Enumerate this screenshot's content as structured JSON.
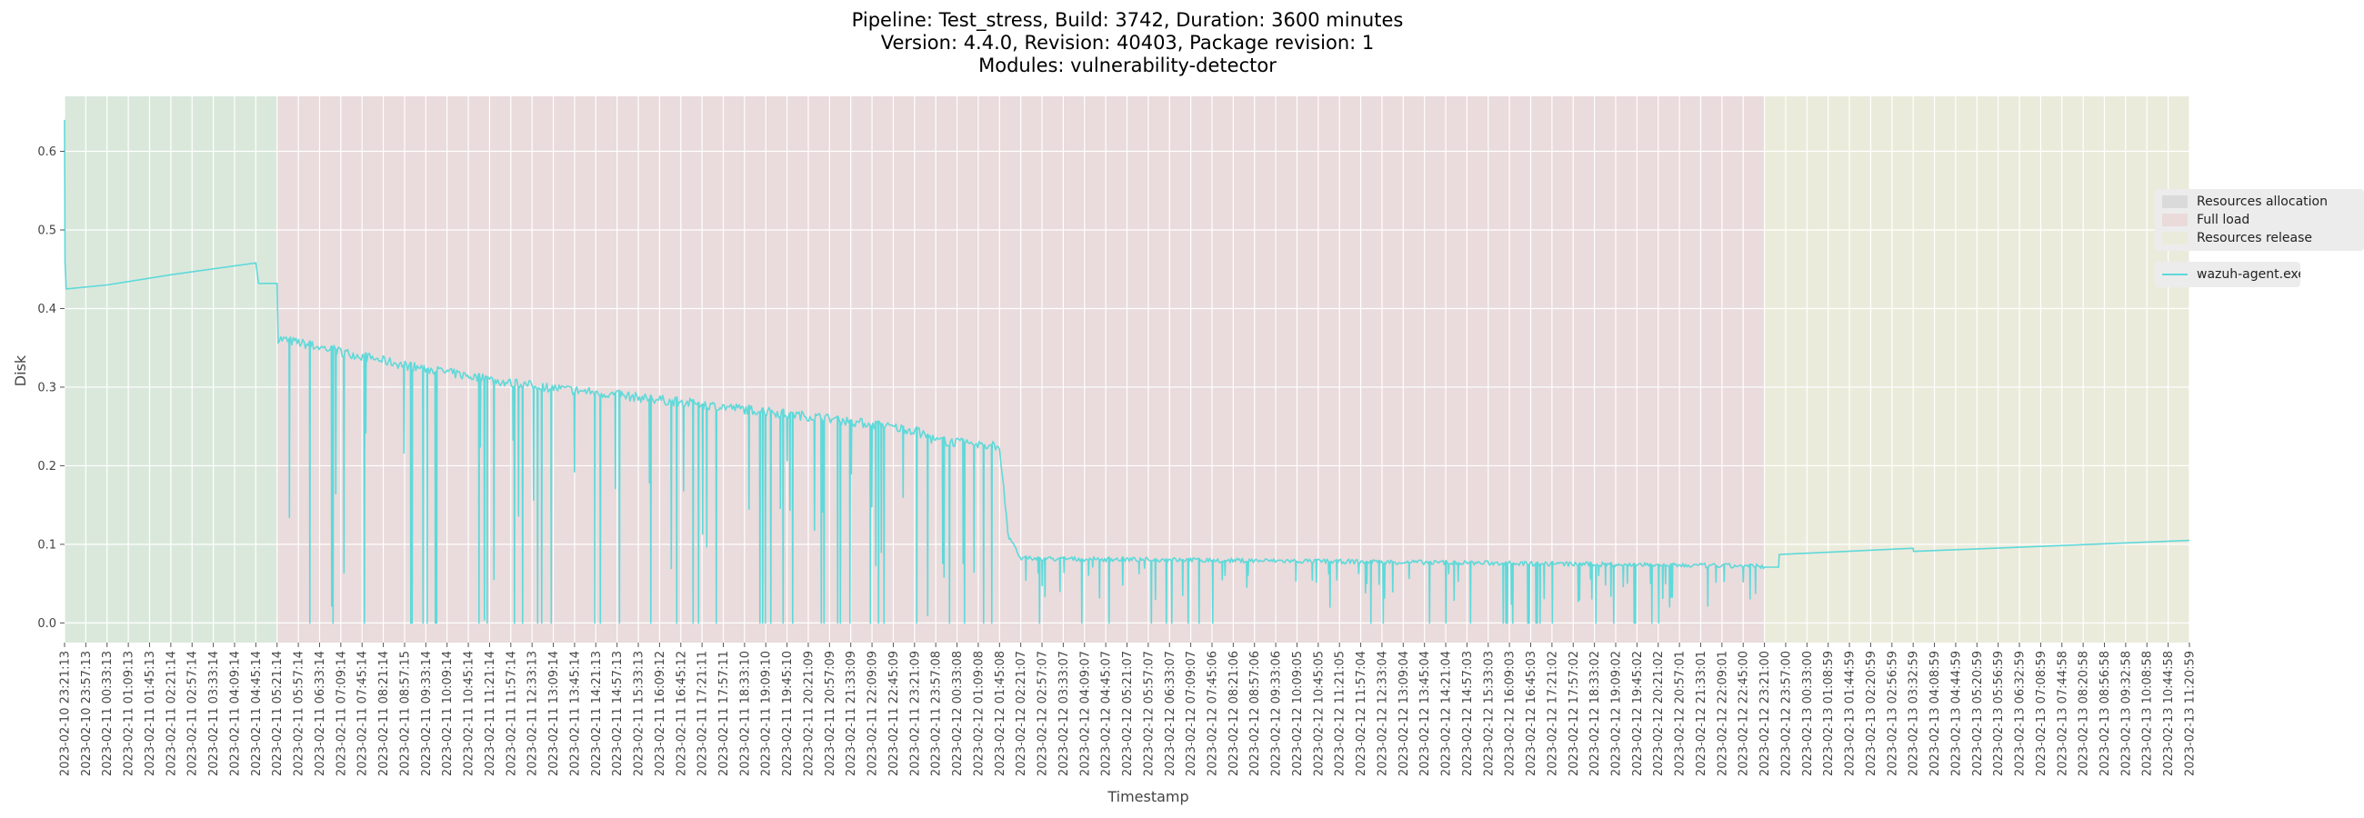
{
  "chart_data": {
    "type": "line",
    "title_lines": [
      "Pipeline: Test_stress, Build: 3742, Duration: 3600 minutes",
      "Version: 4.4.0, Revision: 40403, Package revision: 1",
      "Modules: vulnerability-detector"
    ],
    "xlabel": "Timestamp",
    "ylabel": "Disk",
    "ylim": [
      -0.025,
      0.67
    ],
    "yticks": [
      0.0,
      0.1,
      0.2,
      0.3,
      0.4,
      0.5,
      0.6
    ],
    "grid": true,
    "legend_position": "right",
    "phases": [
      {
        "name": "Resources allocation",
        "start": "2023-02-10 23:21:13",
        "end": "2023-02-11 05:21:14",
        "color": "#dae8dc"
      },
      {
        "name": "Full load",
        "start": "2023-02-11 05:21:14",
        "end": "2023-02-12 23:21:00",
        "color": "#eadbdc"
      },
      {
        "name": "Resources release",
        "start": "2023-02-12 23:21:00",
        "end": "2023-02-13 11:20:59",
        "color": "#ebebdc"
      }
    ],
    "xticks": [
      "2023-02-10 23:21:13",
      "2023-02-10 23:57:13",
      "2023-02-11 00:33:13",
      "2023-02-11 01:09:13",
      "2023-02-11 01:45:13",
      "2023-02-11 02:21:14",
      "2023-02-11 02:57:14",
      "2023-02-11 03:33:14",
      "2023-02-11 04:09:14",
      "2023-02-11 04:45:14",
      "2023-02-11 05:21:14",
      "2023-02-11 05:57:14",
      "2023-02-11 06:33:14",
      "2023-02-11 07:09:14",
      "2023-02-11 07:45:14",
      "2023-02-11 08:21:14",
      "2023-02-11 08:57:15",
      "2023-02-11 09:33:14",
      "2023-02-11 10:09:14",
      "2023-02-11 10:45:14",
      "2023-02-11 11:21:14",
      "2023-02-11 11:57:14",
      "2023-02-11 12:33:13",
      "2023-02-11 13:09:14",
      "2023-02-11 13:45:14",
      "2023-02-11 14:21:13",
      "2023-02-11 14:57:13",
      "2023-02-11 15:33:13",
      "2023-02-11 16:09:12",
      "2023-02-11 16:45:12",
      "2023-02-11 17:21:11",
      "2023-02-11 17:57:11",
      "2023-02-11 18:33:10",
      "2023-02-11 19:09:10",
      "2023-02-11 19:45:10",
      "2023-02-11 20:21:09",
      "2023-02-11 20:57:09",
      "2023-02-11 21:33:09",
      "2023-02-11 22:09:09",
      "2023-02-11 22:45:09",
      "2023-02-11 23:21:09",
      "2023-02-11 23:57:08",
      "2023-02-12 00:33:08",
      "2023-02-12 01:09:08",
      "2023-02-12 01:45:08",
      "2023-02-12 02:21:07",
      "2023-02-12 02:57:07",
      "2023-02-12 03:33:07",
      "2023-02-12 04:09:07",
      "2023-02-12 04:45:07",
      "2023-02-12 05:21:07",
      "2023-02-12 05:57:07",
      "2023-02-12 06:33:07",
      "2023-02-12 07:09:07",
      "2023-02-12 07:45:06",
      "2023-02-12 08:21:06",
      "2023-02-12 08:57:06",
      "2023-02-12 09:33:06",
      "2023-02-12 10:09:05",
      "2023-02-12 10:45:05",
      "2023-02-12 11:21:05",
      "2023-02-12 11:57:04",
      "2023-02-12 12:33:04",
      "2023-02-12 13:09:04",
      "2023-02-12 13:45:04",
      "2023-02-12 14:21:04",
      "2023-02-12 14:57:03",
      "2023-02-12 15:33:03",
      "2023-02-12 16:09:03",
      "2023-02-12 16:45:03",
      "2023-02-12 17:21:02",
      "2023-02-12 17:57:02",
      "2023-02-12 18:33:02",
      "2023-02-12 19:09:02",
      "2023-02-12 19:45:02",
      "2023-02-12 20:21:02",
      "2023-02-12 20:57:01",
      "2023-02-12 21:33:01",
      "2023-02-12 22:09:01",
      "2023-02-12 22:45:00",
      "2023-02-12 23:21:00",
      "2023-02-12 23:57:00",
      "2023-02-13 00:33:00",
      "2023-02-13 01:08:59",
      "2023-02-13 01:44:59",
      "2023-02-13 02:20:59",
      "2023-02-13 02:56:59",
      "2023-02-13 03:32:59",
      "2023-02-13 04:08:59",
      "2023-02-13 04:44:59",
      "2023-02-13 05:20:59",
      "2023-02-13 05:56:59",
      "2023-02-13 06:32:59",
      "2023-02-13 07:08:59",
      "2023-02-13 07:44:58",
      "2023-02-13 08:20:58",
      "2023-02-13 08:56:58",
      "2023-02-13 09:32:58",
      "2023-02-13 10:08:58",
      "2023-02-13 10:44:58",
      "2023-02-13 11:20:59"
    ],
    "series": [
      {
        "name": "wazuh-agent.exe",
        "color": "#5fd9d9",
        "points": [
          [
            "2023-02-10 23:21:13",
            0.64
          ],
          [
            "2023-02-10 23:22:00",
            0.46
          ],
          [
            "2023-02-10 23:24:00",
            0.425
          ],
          [
            "2023-02-11 00:33:13",
            0.43
          ],
          [
            "2023-02-11 02:21:14",
            0.443
          ],
          [
            "2023-02-11 04:45:14",
            0.458
          ],
          [
            "2023-02-11 04:50:00",
            0.432
          ],
          [
            "2023-02-11 05:21:14",
            0.432
          ],
          [
            "2023-02-11 05:23:00",
            0.36
          ]
        ],
        "load_trend": [
          [
            "2023-02-11 05:23:00",
            0.362
          ],
          [
            "2023-02-11 08:57:15",
            0.328
          ],
          [
            "2023-02-11 11:57:14",
            0.305
          ],
          [
            "2023-02-11 14:57:13",
            0.29
          ],
          [
            "2023-02-11 17:57:11",
            0.275
          ],
          [
            "2023-02-11 20:57:09",
            0.26
          ],
          [
            "2023-02-11 23:21:09",
            0.245
          ],
          [
            "2023-02-11 23:57:08",
            0.232
          ],
          [
            "2023-02-12 01:45:08",
            0.225
          ],
          [
            "2023-02-12 02:00:00",
            0.11
          ],
          [
            "2023-02-12 02:21:07",
            0.082
          ],
          [
            "2023-02-12 11:57:04",
            0.078
          ],
          [
            "2023-02-12 23:21:00",
            0.072
          ]
        ],
        "dip_range": [
          0.0,
          0.32
        ],
        "release_points": [
          [
            "2023-02-12 23:21:00",
            0.071
          ],
          [
            "2023-02-12 23:45:00",
            0.071
          ],
          [
            "2023-02-12 23:46:00",
            0.087
          ],
          [
            "2023-02-13 03:32:59",
            0.095
          ],
          [
            "2023-02-13 03:33:30",
            0.091
          ],
          [
            "2023-02-13 11:20:59",
            0.105
          ]
        ]
      }
    ]
  }
}
